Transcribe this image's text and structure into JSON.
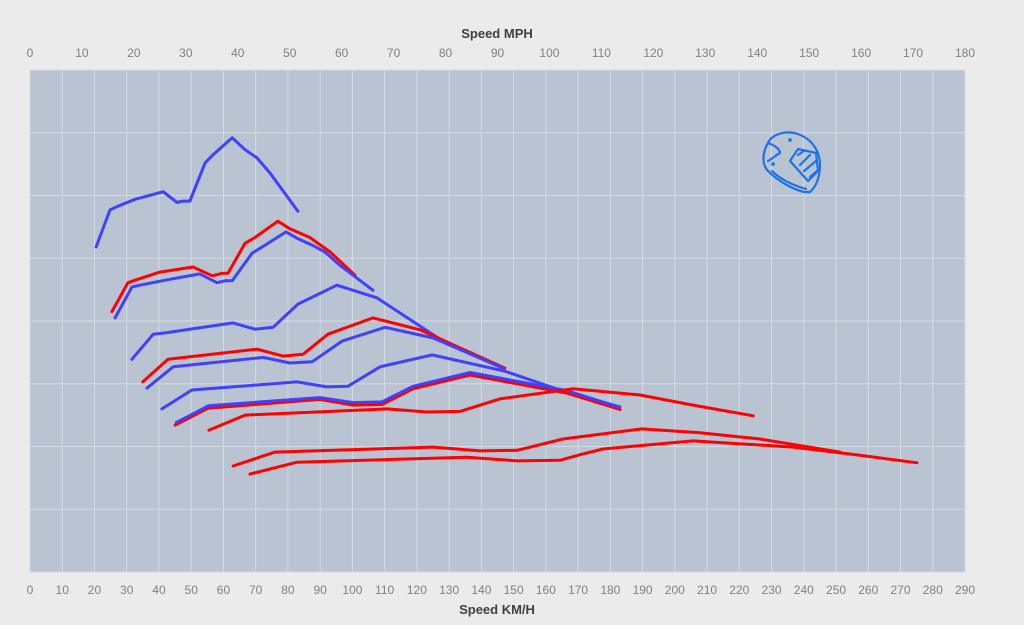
{
  "chart_data": {
    "type": "line",
    "title": "",
    "x_top_label": "Speed MPH",
    "xlabel": "Speed KM/H",
    "ylabel": "",
    "x_top_range_mph": [
      0,
      180
    ],
    "x_top_ticks": [
      0,
      10,
      20,
      30,
      40,
      50,
      60,
      70,
      80,
      90,
      100,
      110,
      120,
      130,
      140,
      150,
      160,
      170,
      180
    ],
    "xlim": [
      0,
      290
    ],
    "x_ticks": [
      0,
      10,
      20,
      30,
      40,
      50,
      60,
      70,
      80,
      90,
      100,
      110,
      120,
      130,
      140,
      150,
      160,
      170,
      180,
      190,
      200,
      210,
      220,
      230,
      240,
      250,
      260,
      270,
      280,
      290
    ],
    "ylim": [
      0,
      8
    ],
    "y_gridlines": [
      0,
      1,
      2,
      3,
      4,
      5,
      6,
      7,
      8
    ],
    "y_tick_labels_shown": false,
    "grid": true,
    "legend": "none",
    "icon": "motorcycle-helmet-icon",
    "colors": {
      "blue": "#4040ff",
      "red": "#ff0000",
      "plot_bg": "#b9c3d1",
      "grid": "#d6dbe2",
      "helmet": "#1a73e8"
    },
    "series": [
      {
        "color": "blue",
        "x": [
          20.5,
          24.8,
          27.3,
          32.6,
          41.3,
          45.6,
          47.5,
          49.6,
          54.3,
          56.8,
          62.7,
          66.7,
          70.4,
          74.4,
          83.1
        ],
        "y": [
          5.18,
          5.77,
          5.83,
          5.94,
          6.06,
          5.89,
          5.91,
          5.91,
          6.52,
          6.65,
          6.92,
          6.73,
          6.6,
          6.36,
          5.75
        ]
      },
      {
        "color": "red",
        "x": [
          25.4,
          30.4,
          32.6,
          40.3,
          50.6,
          56.5,
          59.6,
          61.4,
          66.7,
          69.8,
          76.9,
          80.6,
          86.8,
          93.1,
          100.8
        ],
        "y": [
          4.15,
          4.61,
          4.65,
          4.78,
          4.86,
          4.72,
          4.76,
          4.76,
          5.24,
          5.33,
          5.59,
          5.47,
          5.33,
          5.1,
          4.73
        ]
      },
      {
        "color": "blue",
        "x": [
          26.4,
          31.6,
          34.1,
          41.9,
          52.7,
          58.0,
          60.5,
          62.7,
          68.9,
          72.0,
          79.4,
          82.8,
          87.5,
          91.5,
          96.1,
          106.4
        ],
        "y": [
          4.05,
          4.54,
          4.57,
          4.65,
          4.75,
          4.61,
          4.64,
          4.64,
          5.08,
          5.18,
          5.42,
          5.32,
          5.21,
          5.1,
          4.89,
          4.49
        ]
      },
      {
        "color": "blue",
        "x": [
          31.6,
          38.2,
          41.9,
          63.0,
          69.8,
          75.4,
          83.1,
          95.2,
          107.6,
          127.2,
          146.7
        ],
        "y": [
          3.39,
          3.79,
          3.81,
          3.97,
          3.87,
          3.9,
          4.27,
          4.57,
          4.37,
          3.71,
          3.25
        ]
      },
      {
        "color": "red",
        "x": [
          35.0,
          42.8,
          70.4,
          78.5,
          84.7,
          92.4,
          106.4,
          121.0,
          131.2,
          147.3
        ],
        "y": [
          3.03,
          3.39,
          3.55,
          3.44,
          3.47,
          3.79,
          4.05,
          3.86,
          3.62,
          3.25
        ]
      },
      {
        "color": "blue",
        "x": [
          36.3,
          44.4,
          72.3,
          80.6,
          87.5,
          96.8,
          110.1,
          125.0,
          146.7
        ],
        "y": [
          2.93,
          3.27,
          3.42,
          3.33,
          3.35,
          3.68,
          3.9,
          3.73,
          3.25
        ]
      },
      {
        "color": "blue",
        "x": [
          40.9,
          50.2,
          82.8,
          92.1,
          98.6,
          108.6,
          124.7,
          147.3,
          164.4,
          183.0
        ],
        "y": [
          2.6,
          2.9,
          3.03,
          2.95,
          2.96,
          3.27,
          3.46,
          3.2,
          2.9,
          2.63
        ]
      },
      {
        "color": "red",
        "x": [
          45.0,
          55.2,
          89.9,
          100.2,
          109.2,
          118.8,
          136.5,
          166.6,
          183.0
        ],
        "y": [
          2.34,
          2.61,
          2.75,
          2.66,
          2.67,
          2.92,
          3.14,
          2.85,
          2.59
        ]
      },
      {
        "color": "blue",
        "x": [
          45.3,
          55.4,
          89.9,
          100.2,
          109.2,
          118.8,
          136.5,
          166.6,
          182.5
        ],
        "y": [
          2.38,
          2.65,
          2.78,
          2.7,
          2.71,
          2.96,
          3.18,
          2.89,
          2.63
        ]
      },
      {
        "color": "red",
        "x": [
          55.5,
          66.7,
          110.7,
          123.1,
          133.4,
          145.8,
          168.4,
          189.2,
          205.6,
          224.3
        ],
        "y": [
          2.26,
          2.5,
          2.6,
          2.55,
          2.56,
          2.76,
          2.92,
          2.82,
          2.66,
          2.49
        ]
      },
      {
        "color": "red",
        "x": [
          63.0,
          76.0,
          125.0,
          139.6,
          151.1,
          165.3,
          189.8,
          207.8,
          226.4,
          251.2
        ],
        "y": [
          1.69,
          1.91,
          1.99,
          1.93,
          1.94,
          2.12,
          2.28,
          2.22,
          2.12,
          1.91
        ]
      },
      {
        "color": "red",
        "x": [
          68.2,
          82.8,
          135.5,
          151.1,
          164.4,
          170.6,
          177.7,
          205.6,
          236.7,
          257.4,
          275.1
        ],
        "y": [
          1.56,
          1.75,
          1.83,
          1.77,
          1.78,
          1.87,
          1.96,
          2.09,
          1.99,
          1.86,
          1.74
        ]
      }
    ]
  }
}
